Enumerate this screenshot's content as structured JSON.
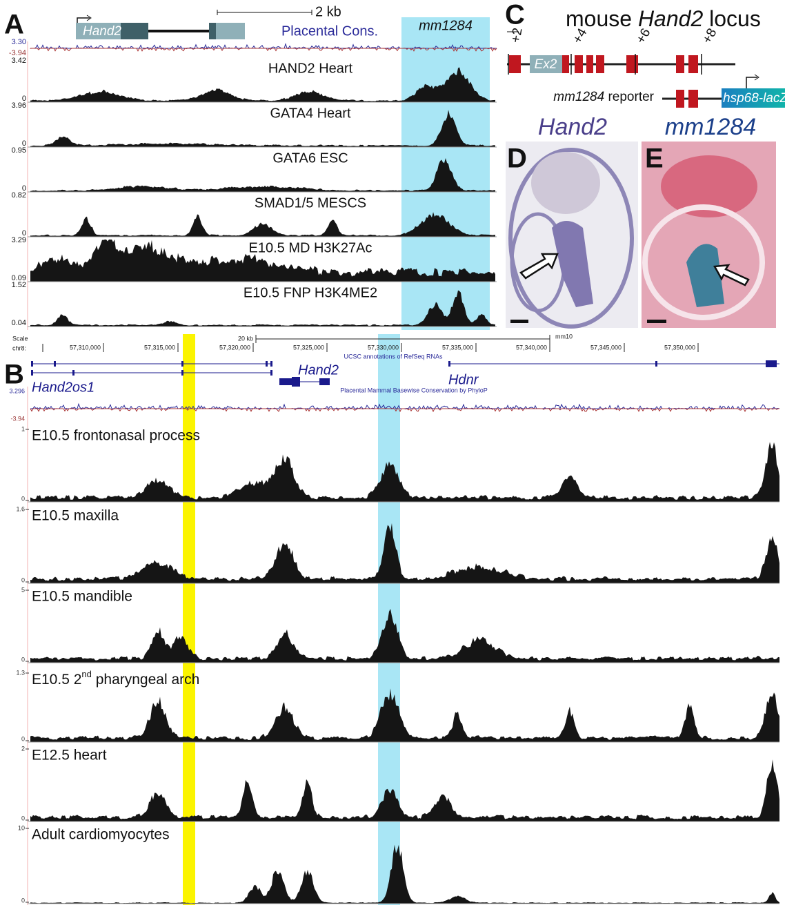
{
  "panels": {
    "A": {
      "label": "A",
      "gene": "Hand2",
      "scale_bar": "2 kb",
      "conservation": "Placental Cons.",
      "enhancer": "mm1284",
      "cons_max": "3.30",
      "cons_min": "-3.94",
      "tracks": [
        {
          "name": "HAND2 Heart",
          "max": "3.42",
          "min": "0"
        },
        {
          "name": "GATA4 Heart",
          "max": "3.96",
          "min": "0"
        },
        {
          "name": "GATA6 ESC",
          "max": "0.95",
          "min": "0"
        },
        {
          "name": "SMAD1/5 MESCS",
          "max": "0.82",
          "min": "0"
        },
        {
          "name": "E10.5 MD H3K27Ac",
          "max": "3.29",
          "min": "0.09"
        },
        {
          "name": "E10.5 FNP H3K4ME2",
          "max": "1.52",
          "min": "0.04"
        }
      ]
    },
    "C": {
      "label": "C",
      "title_pre": "mouse ",
      "title_gene": "Hand2",
      "title_post": " locus",
      "exon": "Ex2",
      "offsets": [
        "+2",
        "+4",
        "+6",
        "+8"
      ],
      "reporter_name": "mm1284",
      "reporter_word": " reporter",
      "promoter": "hsp68-lacZ"
    },
    "D": {
      "label": "D",
      "title": "Hand2"
    },
    "E": {
      "label": "E",
      "title": "mm1284"
    },
    "B": {
      "label": "B",
      "scale": "Scale",
      "chrom": "chr8:",
      "scale_bar": "20 kb",
      "assembly": "mm10",
      "coords": [
        "57,310,000",
        "57,315,000",
        "57,320,000",
        "57,325,000",
        "57,330,000",
        "57,335,000",
        "57,340,000",
        "57,345,000",
        "57,350,000"
      ],
      "refseq": "UCSC annotations of RefSeq RNAs",
      "genes": [
        "Hand2os1",
        "Hand2",
        "Hdnr"
      ],
      "phylop": "Placental Mammal Basewise Conservation by PhyloP",
      "cons_max": "3.296",
      "cons_min": "-3.94",
      "tracks": [
        {
          "name": "E10.5 frontonasal process",
          "max": "1",
          "min": "0"
        },
        {
          "name": "E10.5 maxilla",
          "max": "1.6",
          "min": "0"
        },
        {
          "name": "E10.5 mandible",
          "max": "5",
          "min": "0"
        },
        {
          "name": [
            "E10.5 2",
            "nd",
            " pharyngeal arch"
          ],
          "max": "1.3",
          "min": "0"
        },
        {
          "name": "E12.5 heart",
          "max": "2",
          "min": "0"
        },
        {
          "name": "Adult cardiomyocytes",
          "max": "10",
          "min": "0"
        }
      ]
    }
  }
}
